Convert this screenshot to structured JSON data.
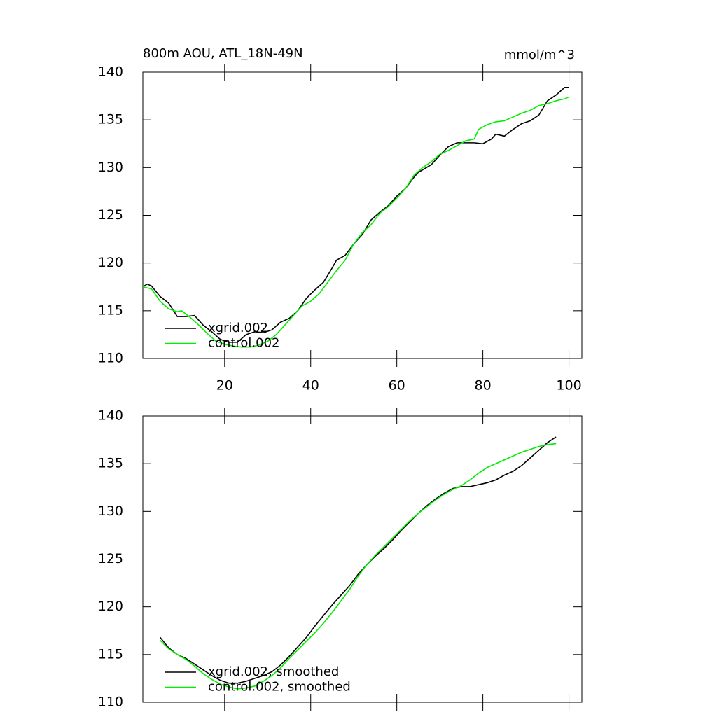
{
  "chart_data": [
    {
      "type": "line",
      "title": "800m AOU, ATL_18N-49N",
      "units": "mmol/m^3",
      "xlim": [
        1,
        103
      ],
      "xticks": [
        20,
        40,
        60,
        80,
        100
      ],
      "show_xtick_labels": true,
      "ylim": [
        110,
        140
      ],
      "yticks": [
        110,
        115,
        120,
        125,
        130,
        135,
        140
      ],
      "legend": "lower left",
      "series": [
        {
          "name": "xgrid.002",
          "color": "#000000",
          "x": [
            1,
            2,
            3,
            5,
            7,
            9,
            11,
            13,
            15,
            17,
            19,
            21,
            23,
            25,
            27,
            29,
            31,
            33,
            35,
            37,
            39,
            41,
            43,
            45,
            46,
            48,
            50,
            52,
            54,
            56,
            58,
            60,
            62,
            64,
            65,
            68,
            70,
            72,
            74,
            76,
            78,
            80,
            82,
            83,
            85,
            87,
            89,
            91,
            93,
            95,
            97,
            99,
            100
          ],
          "values": [
            117.5,
            117.8,
            117.6,
            116.5,
            115.8,
            114.4,
            114.4,
            114.5,
            113.5,
            112.8,
            112.0,
            111.7,
            111.7,
            112.5,
            112.8,
            112.7,
            113.0,
            113.8,
            114.2,
            115.0,
            116.3,
            117.2,
            118.0,
            119.5,
            120.3,
            120.8,
            122.0,
            123.0,
            124.5,
            125.3,
            126.0,
            127.0,
            127.8,
            129.0,
            129.5,
            130.3,
            131.3,
            132.2,
            132.6,
            132.6,
            132.6,
            132.5,
            133.0,
            133.5,
            133.3,
            134.0,
            134.6,
            134.9,
            135.5,
            137.0,
            137.6,
            138.4,
            138.4
          ]
        },
        {
          "name": "control.002",
          "color": "#00ee00",
          "x": [
            1,
            3,
            5,
            7,
            9,
            10,
            12,
            14,
            16,
            18,
            20,
            22,
            24,
            26,
            28,
            30,
            32,
            34,
            36,
            38,
            40,
            42,
            44,
            46,
            48,
            50,
            52,
            54,
            56,
            58,
            60,
            62,
            64,
            66,
            68,
            70,
            72,
            74,
            76,
            78,
            79,
            81,
            83,
            85,
            87,
            89,
            91,
            93,
            95,
            97,
            99,
            100
          ],
          "values": [
            117.5,
            117.3,
            116.0,
            115.2,
            114.9,
            115.0,
            114.3,
            113.5,
            112.6,
            111.8,
            111.5,
            111.3,
            111.2,
            111.2,
            111.4,
            111.8,
            112.5,
            113.5,
            114.5,
            115.5,
            116.0,
            116.8,
            118.0,
            119.2,
            120.3,
            122.0,
            123.2,
            124.0,
            125.2,
            125.9,
            126.8,
            127.8,
            129.2,
            130.0,
            130.6,
            131.4,
            131.8,
            132.3,
            132.8,
            133.0,
            134.0,
            134.5,
            134.8,
            134.9,
            135.3,
            135.7,
            136.0,
            136.5,
            136.7,
            137.0,
            137.2,
            137.4
          ]
        }
      ]
    },
    {
      "type": "line",
      "xlim": [
        1,
        103
      ],
      "xticks": [
        20,
        40,
        60,
        80,
        100
      ],
      "show_xtick_labels": false,
      "ylim": [
        110,
        140
      ],
      "yticks": [
        110,
        115,
        120,
        125,
        130,
        135,
        140
      ],
      "legend": "lower left",
      "series": [
        {
          "name": "xgrid.002, smoothed",
          "color": "#000000",
          "x": [
            5,
            7,
            9,
            11,
            13,
            15,
            17,
            19,
            21,
            23,
            25,
            27,
            29,
            31,
            33,
            35,
            37,
            39,
            41,
            43,
            45,
            47,
            49,
            51,
            53,
            55,
            57,
            59,
            61,
            63,
            65,
            67,
            69,
            71,
            73,
            75,
            77,
            79,
            81,
            83,
            85,
            87,
            89,
            91,
            93,
            95,
            97
          ],
          "values": [
            116.8,
            115.7,
            115.0,
            114.6,
            114.0,
            113.4,
            112.8,
            112.3,
            112.0,
            112.0,
            112.2,
            112.5,
            112.8,
            113.2,
            113.9,
            114.8,
            115.8,
            116.8,
            118.0,
            119.1,
            120.2,
            121.2,
            122.2,
            123.4,
            124.4,
            125.3,
            126.1,
            127.0,
            128.0,
            128.9,
            129.8,
            130.6,
            131.3,
            131.9,
            132.4,
            132.6,
            132.6,
            132.8,
            133.0,
            133.3,
            133.8,
            134.2,
            134.8,
            135.6,
            136.4,
            137.2,
            137.8
          ]
        },
        {
          "name": "control.002, smoothed",
          "color": "#00ee00",
          "x": [
            5,
            7,
            9,
            11,
            13,
            15,
            17,
            19,
            21,
            23,
            25,
            27,
            29,
            31,
            33,
            35,
            37,
            39,
            41,
            43,
            45,
            47,
            49,
            51,
            53,
            55,
            57,
            59,
            61,
            63,
            65,
            67,
            69,
            71,
            73,
            75,
            77,
            79,
            81,
            83,
            85,
            87,
            89,
            91,
            93,
            95,
            97
          ],
          "values": [
            116.5,
            115.6,
            115.0,
            114.5,
            113.8,
            113.0,
            112.4,
            111.9,
            111.6,
            111.4,
            111.5,
            111.7,
            112.2,
            112.8,
            113.6,
            114.6,
            115.5,
            116.4,
            117.3,
            118.3,
            119.4,
            120.6,
            121.8,
            123.2,
            124.4,
            125.4,
            126.3,
            127.2,
            128.1,
            129.0,
            129.8,
            130.5,
            131.2,
            131.8,
            132.3,
            132.7,
            133.3,
            134.0,
            134.6,
            135.0,
            135.4,
            135.8,
            136.2,
            136.5,
            136.8,
            137.0,
            137.1
          ]
        }
      ]
    }
  ]
}
